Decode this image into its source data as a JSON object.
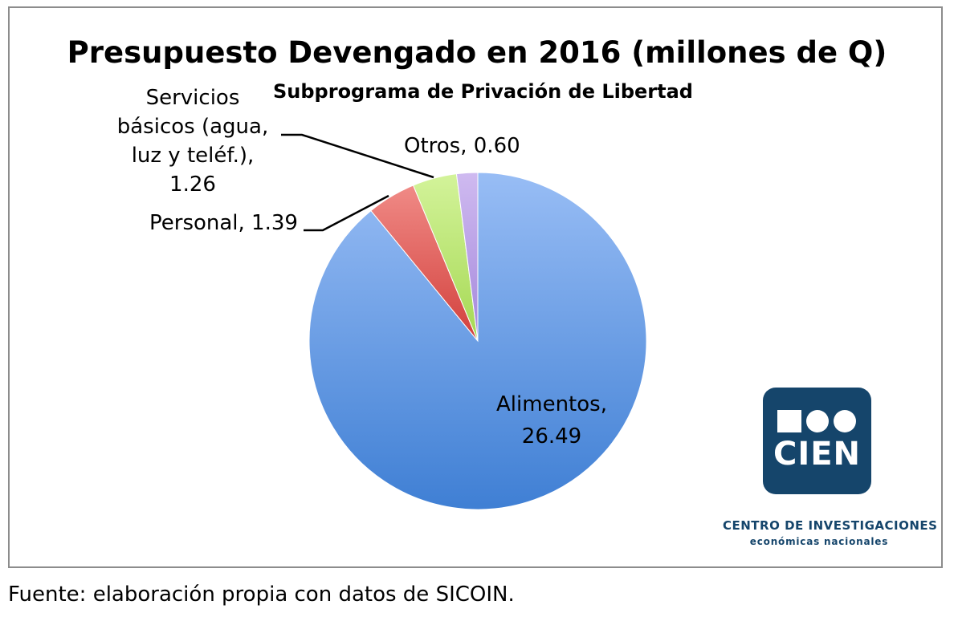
{
  "chart_data": {
    "type": "pie",
    "title": "Presupuesto Devengado en 2016 (millones de Q)",
    "subtitle": "Subprograma de Privación de Libertad",
    "slices": [
      {
        "label": "Alimentos",
        "value": 26.49,
        "value_text": "26.49",
        "color": "#6f9fe6"
      },
      {
        "label": "Personal",
        "value": 1.39,
        "value_text": "1.39",
        "color": "#e05a58"
      },
      {
        "label": "Servicios básicos (agua, luz y teléf.)",
        "value": 1.26,
        "value_text": "1.26",
        "color": "#b6e36a"
      },
      {
        "label": "Otros",
        "value": 0.6,
        "value_text": "0.60",
        "color": "#b79be6"
      }
    ]
  },
  "labels": {
    "servicios_line1": "Servicios",
    "servicios_line2": "básicos (agua,",
    "servicios_line3": "luz y teléf.),",
    "servicios_line4": "1.26",
    "personal": "Personal, 1.39",
    "otros": "Otros, 0.60",
    "alimentos_line1": "Alimentos,",
    "alimentos_line2": "26.49"
  },
  "logo": {
    "text": "CIEN",
    "org_line1": "CENTRO DE INVESTIGACIONES",
    "org_line2": "económicas nacionales",
    "color": "#15456b"
  },
  "footer": {
    "source": "Fuente: elaboración propia con datos de SICOIN."
  }
}
